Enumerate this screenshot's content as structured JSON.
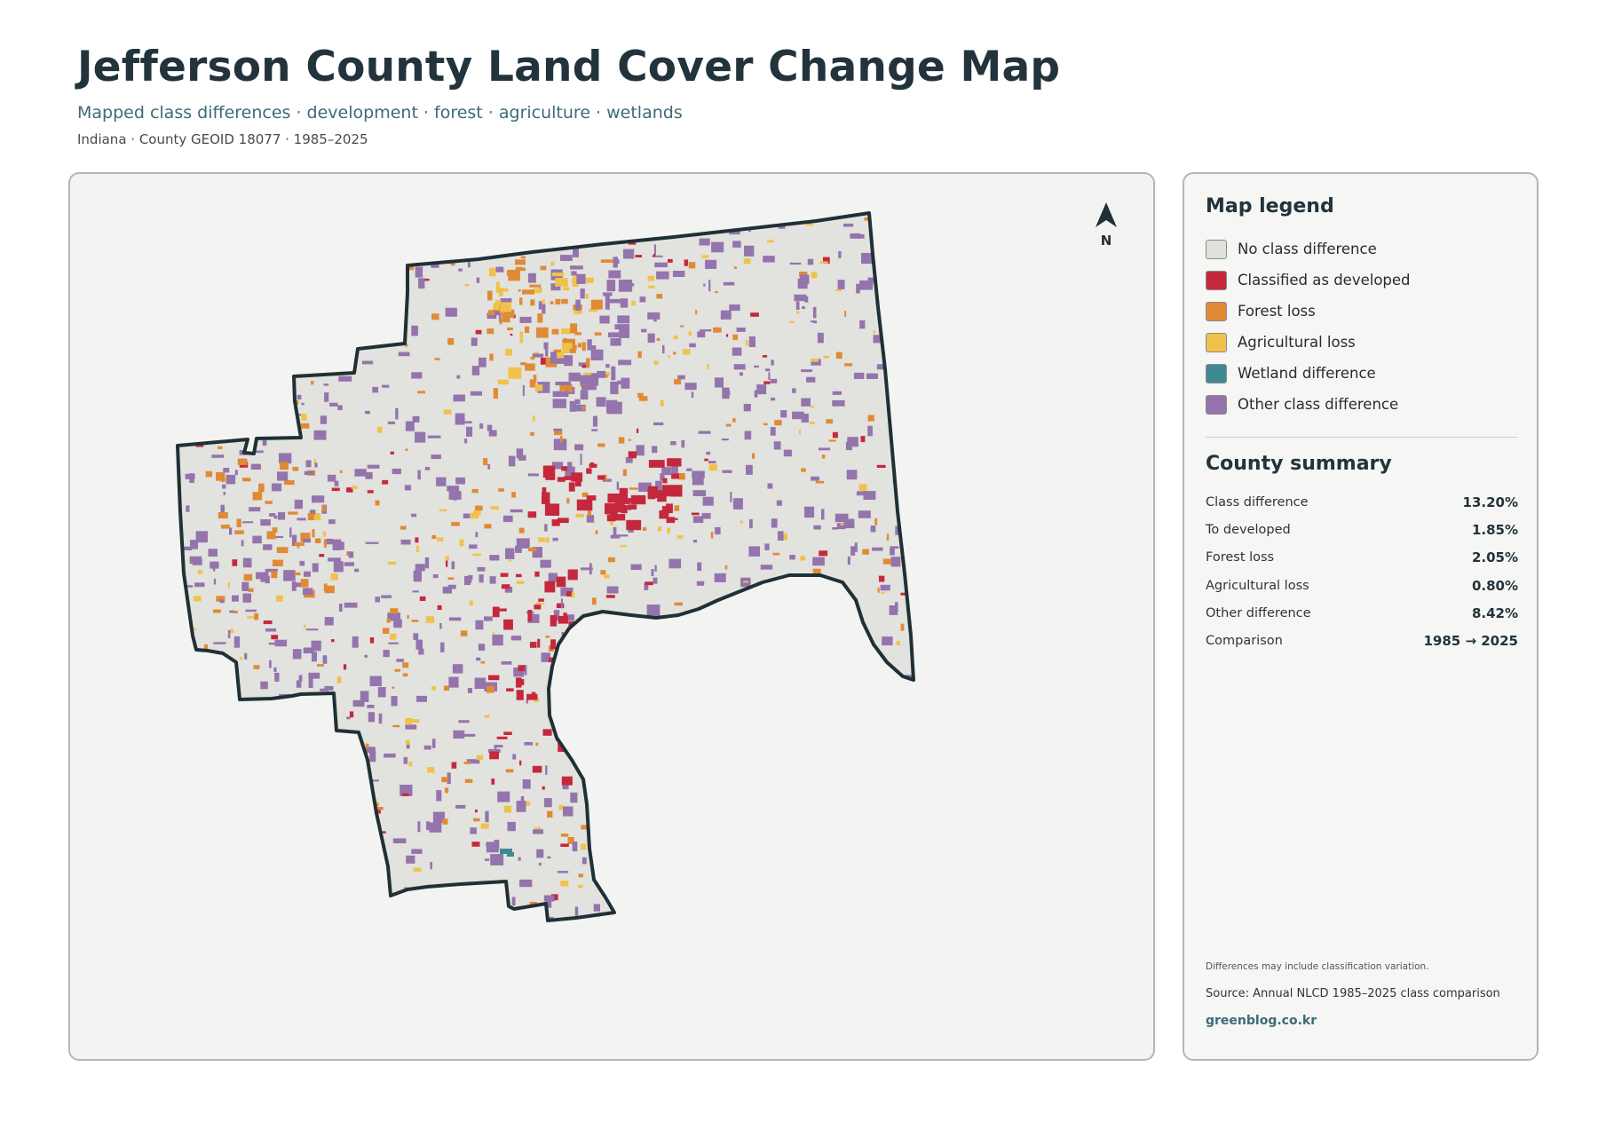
{
  "header": {
    "title": "Jefferson County Land Cover Change Map",
    "subtitle": "Mapped class differences · development · forest · agriculture · wetlands",
    "meta": "Indiana · County GEOID 18077 · 1985–2025"
  },
  "map": {
    "north_label": "N",
    "colors": {
      "boundary": "#1f3036",
      "no_change": "#e2e2de",
      "outside": "#f3f3f1"
    }
  },
  "legend": {
    "title": "Map legend",
    "items": [
      {
        "label": "No class difference",
        "color": "#e0e0dc"
      },
      {
        "label": "Classified as developed",
        "color": "#c5283d"
      },
      {
        "label": "Forest loss",
        "color": "#e08a35"
      },
      {
        "label": "Agricultural loss",
        "color": "#f0c24b"
      },
      {
        "label": "Wetland difference",
        "color": "#3f8a92"
      },
      {
        "label": "Other class difference",
        "color": "#9474ad"
      }
    ]
  },
  "summary": {
    "title": "County summary",
    "rows": [
      {
        "label": "Class difference",
        "value": "13.20%"
      },
      {
        "label": "To developed",
        "value": "1.85%"
      },
      {
        "label": "Forest loss",
        "value": "2.05%"
      },
      {
        "label": "Agricultural loss",
        "value": "0.80%"
      },
      {
        "label": "Other difference",
        "value": "8.42%"
      },
      {
        "label": "Comparison",
        "value": "1985 → 2025"
      }
    ]
  },
  "footer": {
    "disclaimer": "Differences may include classification variation.",
    "source": "Source: Annual NLCD 1985–2025 class comparison",
    "credit": "greenblog.co.kr"
  }
}
